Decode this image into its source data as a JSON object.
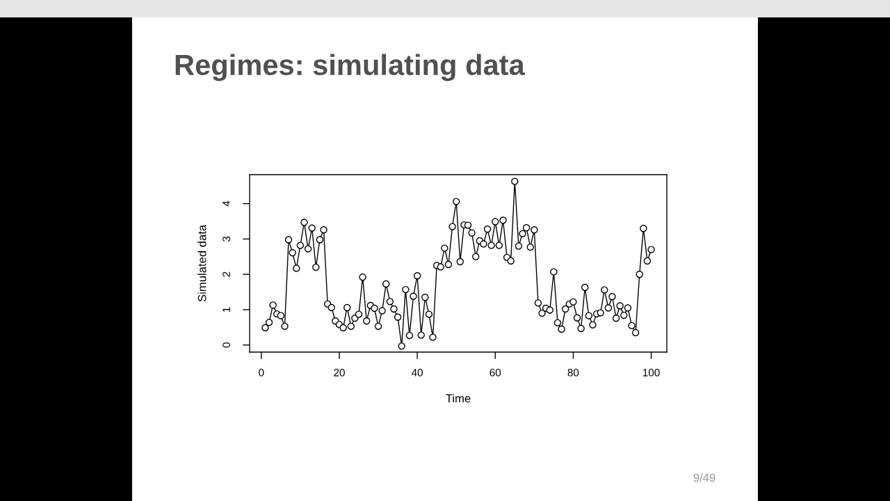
{
  "chart_data": {
    "type": "line",
    "title": "Regimes: simulating data",
    "xlabel": "Time",
    "ylabel": "Simulated data",
    "annotations": [
      "9/49"
    ],
    "x": [
      1,
      2,
      3,
      4,
      5,
      6,
      7,
      8,
      9,
      10,
      11,
      12,
      13,
      14,
      15,
      16,
      17,
      18,
      19,
      20,
      21,
      22,
      23,
      24,
      25,
      26,
      27,
      28,
      29,
      30,
      31,
      32,
      33,
      34,
      35,
      36,
      37,
      38,
      39,
      40,
      41,
      42,
      43,
      44,
      45,
      46,
      47,
      48,
      49,
      50,
      51,
      52,
      53,
      54,
      55,
      56,
      57,
      58,
      59,
      60,
      61,
      62,
      63,
      64,
      65,
      66,
      67,
      68,
      69,
      70,
      71,
      72,
      73,
      74,
      75,
      76,
      77,
      78,
      79,
      80,
      81,
      82,
      83,
      84,
      85,
      86,
      87,
      88,
      89,
      90,
      91,
      92,
      93,
      94,
      95,
      96,
      97,
      98,
      99,
      100
    ],
    "series": [
      {
        "color": "#000000",
        "values": [
          0.49,
          0.64,
          1.13,
          0.88,
          0.83,
          0.53,
          2.98,
          2.61,
          2.17,
          2.82,
          3.47,
          2.72,
          3.31,
          2.2,
          2.98,
          3.26,
          1.16,
          1.06,
          0.68,
          0.58,
          0.49,
          1.06,
          0.53,
          0.76,
          0.87,
          1.92,
          0.68,
          1.12,
          1.04,
          0.53,
          0.97,
          1.73,
          1.23,
          1.02,
          0.79,
          -0.03,
          1.57,
          0.27,
          1.38,
          1.96,
          0.28,
          1.35,
          0.87,
          0.22,
          2.25,
          2.21,
          2.74,
          2.28,
          3.35,
          4.06,
          2.36,
          3.4,
          3.39,
          3.17,
          2.5,
          2.95,
          2.86,
          3.28,
          2.82,
          3.49,
          2.82,
          3.53,
          2.48,
          2.38,
          4.63,
          2.8,
          3.15,
          3.32,
          2.77,
          3.26,
          1.19,
          0.9,
          1.04,
          0.99,
          2.07,
          0.63,
          0.45,
          1.02,
          1.16,
          1.22,
          0.77,
          0.47,
          1.63,
          0.83,
          0.57,
          0.88,
          0.91,
          1.56,
          1.05,
          1.37,
          0.76,
          1.11,
          0.84,
          1.05,
          0.55,
          0.35,
          2.0,
          3.3,
          2.38,
          2.7
        ]
      }
    ],
    "xlim": [
      -3,
      104
    ],
    "ylim": [
      -0.2,
      4.82
    ],
    "xticks": [
      0,
      20,
      40,
      60,
      80,
      100
    ],
    "yticks": [
      0,
      1,
      2,
      3,
      4
    ],
    "grid": false,
    "marker": "circle",
    "line_style": "solid"
  }
}
